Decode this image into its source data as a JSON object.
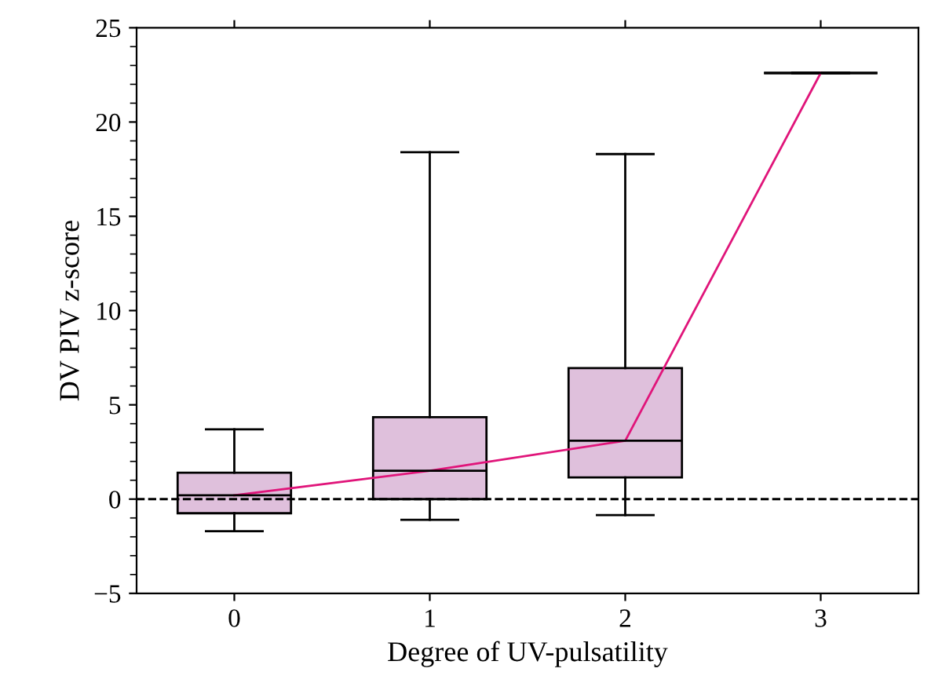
{
  "chart_data": {
    "type": "box",
    "xlabel": "Degree of UV-pulsatility",
    "ylabel": "DV PIV z-score",
    "categories": [
      "0",
      "1",
      "2",
      "3"
    ],
    "boxes": [
      {
        "low": -1.7,
        "q1": -0.75,
        "median": 0.2,
        "q3": 1.4,
        "high": 3.7
      },
      {
        "low": -1.1,
        "q1": 0,
        "median": 1.5,
        "q3": 4.35,
        "high": 18.4
      },
      {
        "low": -0.85,
        "q1": 1.15,
        "median": 3.1,
        "q3": 6.95,
        "high": 18.3
      },
      {
        "low": 22.6,
        "q1": 22.6,
        "median": 22.6,
        "q3": 22.6,
        "high": 22.6
      }
    ],
    "colors": [
      "#dfc0dc",
      "#dfc0dc",
      "#dfc0dc",
      "#000000"
    ],
    "series": [
      {
        "type": "line",
        "color": "#e0157a",
        "values": [
          0.2,
          1.5,
          3.1,
          22.6
        ]
      }
    ],
    "ylim": [
      -5,
      25
    ],
    "yticks": [
      {
        "value": -5,
        "label": "−5"
      },
      0,
      5,
      10,
      15,
      20,
      25
    ],
    "ref_lines": [
      {
        "axis": "y",
        "value": 0,
        "line_style": "dashed",
        "color": "#000000"
      }
    ],
    "grid": false,
    "legend": false
  }
}
